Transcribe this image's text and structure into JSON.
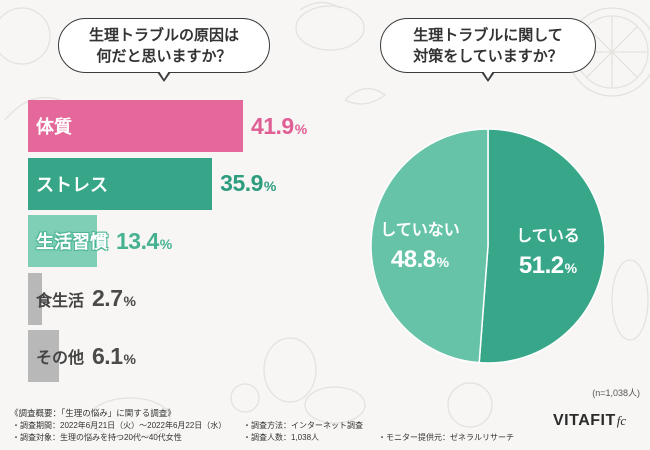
{
  "chart_data": [
    {
      "type": "bar",
      "orientation": "horizontal",
      "title_lines": [
        "生理トラブルの原因は",
        "何だと思いますか？"
      ],
      "categories": [
        "体質",
        "ストレス",
        "生活習慣",
        "食生活",
        "その他"
      ],
      "values": [
        41.9,
        35.9,
        13.4,
        2.7,
        6.1
      ],
      "unit": "%",
      "bar_colors": [
        "#e4699a",
        "#37a688",
        "#7fcfb6",
        "#b8b8b8",
        "#b8b8b8"
      ],
      "value_colors": [
        "#e05f94",
        "#2e9d7f",
        "#47b292",
        "#4a4a4a",
        "#4a4a4a"
      ]
    },
    {
      "type": "pie",
      "title_lines": [
        "生理トラブルに関して",
        "対策をしていますか？"
      ],
      "labels": [
        "している",
        "していない"
      ],
      "values": [
        51.2,
        48.8
      ],
      "unit": "%",
      "colors": [
        "#38a789",
        "#67c3a8"
      ],
      "sample_size": "(n=1,038人)"
    }
  ],
  "survey": {
    "heading": "《調査概要：「生理の悩み」に関する調査》",
    "items": [
      "・調査期間：2022年6月21日（火）～2022年6月22日（水）",
      "・調査方法：インターネット調査",
      "・調査対象：生理の悩みを持つ20代～40代女性",
      "・調査人数：1,038人",
      "・モニター提供元：ゼネラルリサーチ"
    ]
  },
  "logo": {
    "text": "VITAFIT",
    "suffix": "fc"
  }
}
